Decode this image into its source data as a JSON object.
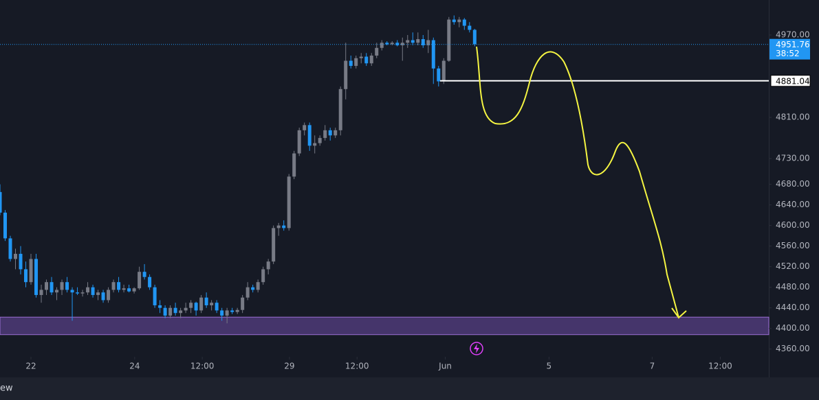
{
  "chart_data": {
    "type": "candlestick",
    "x": [
      0,
      1,
      2,
      3,
      4,
      5,
      6,
      7,
      8,
      9,
      10,
      11,
      12,
      13,
      14,
      15,
      16,
      17,
      18,
      19,
      20,
      21,
      22,
      23,
      24,
      25,
      26,
      27,
      28,
      29,
      30,
      31,
      32,
      33,
      34,
      35,
      36,
      37,
      38,
      39,
      40,
      41,
      42,
      43,
      44,
      45,
      46,
      47,
      48,
      49,
      50,
      51,
      52,
      53,
      54,
      55,
      56,
      57,
      58,
      59,
      60,
      61,
      62,
      63,
      64,
      65,
      66,
      67,
      68,
      69,
      70,
      71,
      72,
      73,
      74,
      75,
      76,
      77,
      78,
      79,
      80,
      81,
      82,
      83,
      84,
      85,
      86,
      87,
      88,
      89,
      90,
      91,
      92
    ],
    "open": [
      4665,
      4625,
      4575,
      4535,
      4545,
      4515,
      4490,
      4535,
      4465,
      4475,
      4490,
      4470,
      4475,
      4490,
      4475,
      4470,
      4468,
      4470,
      4480,
      4465,
      4470,
      4455,
      4475,
      4490,
      4475,
      4478,
      4472,
      4478,
      4510,
      4500,
      4480,
      4445,
      4440,
      4425,
      4440,
      4430,
      4435,
      4440,
      4450,
      4435,
      4460,
      4445,
      4450,
      4435,
      4425,
      4435,
      4432,
      4436,
      4460,
      4480,
      4475,
      4490,
      4515,
      4530,
      4595,
      4600,
      4595,
      4695,
      4740,
      4785,
      4795,
      4755,
      4760,
      4770,
      4785,
      4775,
      4785,
      4865,
      4920,
      4910,
      4925,
      4928,
      4915,
      4930,
      4945,
      4955,
      4952,
      4955,
      4950,
      4955,
      4960,
      4955,
      4962,
      4950,
      4960,
      4905,
      4880,
      4920,
      5000,
      4995,
      5000,
      4988,
      4980
    ],
    "high": [
      4680,
      4630,
      4580,
      4555,
      4560,
      4530,
      4545,
      4545,
      4485,
      4495,
      4500,
      4480,
      4495,
      4500,
      4480,
      4480,
      4475,
      4490,
      4485,
      4475,
      4475,
      4480,
      4495,
      4500,
      4485,
      4485,
      4480,
      4520,
      4525,
      4505,
      4485,
      4455,
      4445,
      4445,
      4450,
      4440,
      4450,
      4455,
      4452,
      4465,
      4470,
      4455,
      4455,
      4440,
      4440,
      4440,
      4440,
      4465,
      4490,
      4485,
      4495,
      4520,
      4535,
      4600,
      4605,
      4610,
      4700,
      4745,
      4790,
      4800,
      4800,
      4775,
      4775,
      4795,
      4790,
      4790,
      4870,
      4955,
      4930,
      4930,
      4935,
      4935,
      4935,
      4955,
      4960,
      4958,
      4958,
      4960,
      4965,
      4970,
      4975,
      4975,
      4970,
      4980,
      4965,
      4910,
      4925,
      5005,
      5008,
      5005,
      5003,
      4995,
      4982
    ],
    "low": [
      4620,
      4570,
      4530,
      4515,
      4505,
      4480,
      4485,
      4460,
      4450,
      4465,
      4465,
      4455,
      4465,
      4470,
      4415,
      4465,
      4462,
      4465,
      4460,
      4455,
      4450,
      4450,
      4470,
      4470,
      4470,
      4470,
      4468,
      4475,
      4495,
      4475,
      4440,
      4430,
      4420,
      4420,
      4425,
      4420,
      4430,
      4430,
      4425,
      4430,
      4440,
      4435,
      4430,
      4415,
      4410,
      4428,
      4428,
      4430,
      4455,
      4470,
      4470,
      4485,
      4505,
      4525,
      4580,
      4590,
      4590,
      4690,
      4735,
      4775,
      4745,
      4740,
      4755,
      4765,
      4765,
      4770,
      4775,
      4845,
      4905,
      4905,
      4915,
      4910,
      4910,
      4925,
      4940,
      4950,
      4950,
      4948,
      4920,
      4945,
      4950,
      4950,
      4945,
      4935,
      4875,
      4870,
      4875,
      4918,
      4990,
      4985,
      4980,
      4975,
      4948
    ],
    "close": [
      4625,
      4575,
      4535,
      4545,
      4515,
      4490,
      4535,
      4465,
      4475,
      4490,
      4470,
      4475,
      4490,
      4475,
      4470,
      4468,
      4470,
      4480,
      4465,
      4470,
      4455,
      4475,
      4490,
      4475,
      4478,
      4472,
      4478,
      4510,
      4500,
      4480,
      4445,
      4440,
      4425,
      4440,
      4430,
      4435,
      4440,
      4450,
      4435,
      4460,
      4445,
      4450,
      4435,
      4425,
      4435,
      4432,
      4436,
      4460,
      4480,
      4475,
      4490,
      4515,
      4530,
      4595,
      4600,
      4595,
      4695,
      4740,
      4785,
      4795,
      4755,
      4760,
      4770,
      4785,
      4775,
      4785,
      4865,
      4920,
      4910,
      4925,
      4928,
      4915,
      4930,
      4945,
      4955,
      4952,
      4955,
      4950,
      4955,
      4960,
      4955,
      4962,
      4950,
      4960,
      4905,
      4880,
      4920,
      5000,
      4995,
      5000,
      4988,
      4980,
      4952
    ],
    "up_color": "#787b86",
    "down_color": "#2196f3",
    "xlim": [
      0,
      149
    ],
    "xticks": [
      {
        "value": 6,
        "label": "22"
      },
      {
        "value": 26.1,
        "label": "24"
      },
      {
        "value": 39.2,
        "label": "12:00"
      },
      {
        "value": 56.1,
        "label": "29"
      },
      {
        "value": 69.2,
        "label": "12:00"
      },
      {
        "value": 86.3,
        "label": "Jun"
      },
      {
        "value": 106.4,
        "label": "5"
      },
      {
        "value": 126.4,
        "label": "7"
      },
      {
        "value": 139.6,
        "label": "12:00"
      }
    ],
    "ylim": [
      4345,
      5038
    ],
    "yticks": [
      {
        "value": 4970,
        "label": "4970.00"
      },
      {
        "value": 4810,
        "label": "4810.00"
      },
      {
        "value": 4730,
        "label": "4730.00"
      },
      {
        "value": 4680,
        "label": "4680.00"
      },
      {
        "value": 4640,
        "label": "4640.00"
      },
      {
        "value": 4600,
        "label": "4600.00"
      },
      {
        "value": 4560,
        "label": "4560.00"
      },
      {
        "value": 4520,
        "label": "4520.00"
      },
      {
        "value": 4480,
        "label": "4480.00"
      },
      {
        "value": 4440,
        "label": "4440.00"
      },
      {
        "value": 4400,
        "label": "4400.00"
      },
      {
        "value": 4360,
        "label": "4360.00"
      }
    ],
    "last_price": {
      "value": 4951.76,
      "label": "4951.76",
      "countdown": "38:52"
    },
    "level": {
      "value": 4881.04,
      "label": "4881.04"
    },
    "zone": {
      "low": 4388,
      "high": 4422
    }
  },
  "footer": "ew"
}
